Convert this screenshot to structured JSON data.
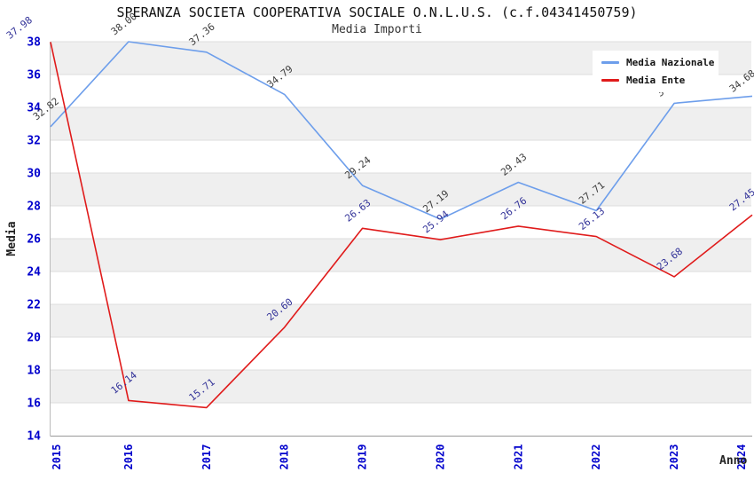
{
  "title": "SPERANZA SOCIETA COOPERATIVA SOCIALE O.N.L.U.S. (c.f.04341450759)",
  "subtitle": "Media Importi",
  "chart_data": {
    "type": "line",
    "x": [
      2015,
      2016,
      2017,
      2018,
      2019,
      2020,
      2021,
      2022,
      2023,
      2024
    ],
    "series": [
      {
        "name": "Media Nazionale",
        "color": "#6d9eeb",
        "label_color": "#3d3d3d",
        "values": [
          32.82,
          38.0,
          37.36,
          34.79,
          29.24,
          27.19,
          29.43,
          27.71,
          34.25,
          34.68
        ]
      },
      {
        "name": "Media Ente",
        "color": "#e01b1b",
        "label_color": "#333399",
        "values": [
          37.98,
          16.14,
          15.71,
          20.6,
          26.63,
          25.94,
          26.76,
          26.13,
          23.68,
          27.45
        ]
      }
    ],
    "xlabel": "Anno",
    "ylabel": "Media",
    "ylim": [
      14,
      38
    ],
    "yticks": [
      14,
      16,
      18,
      20,
      22,
      24,
      26,
      28,
      30,
      32,
      34,
      36,
      38
    ],
    "grid": "horizontal-bands-alternating",
    "band_color": "#efefef",
    "gridline_color": "#dcdcdc",
    "axis_tick_color": "#0000cc",
    "legend_position": "top-right"
  }
}
